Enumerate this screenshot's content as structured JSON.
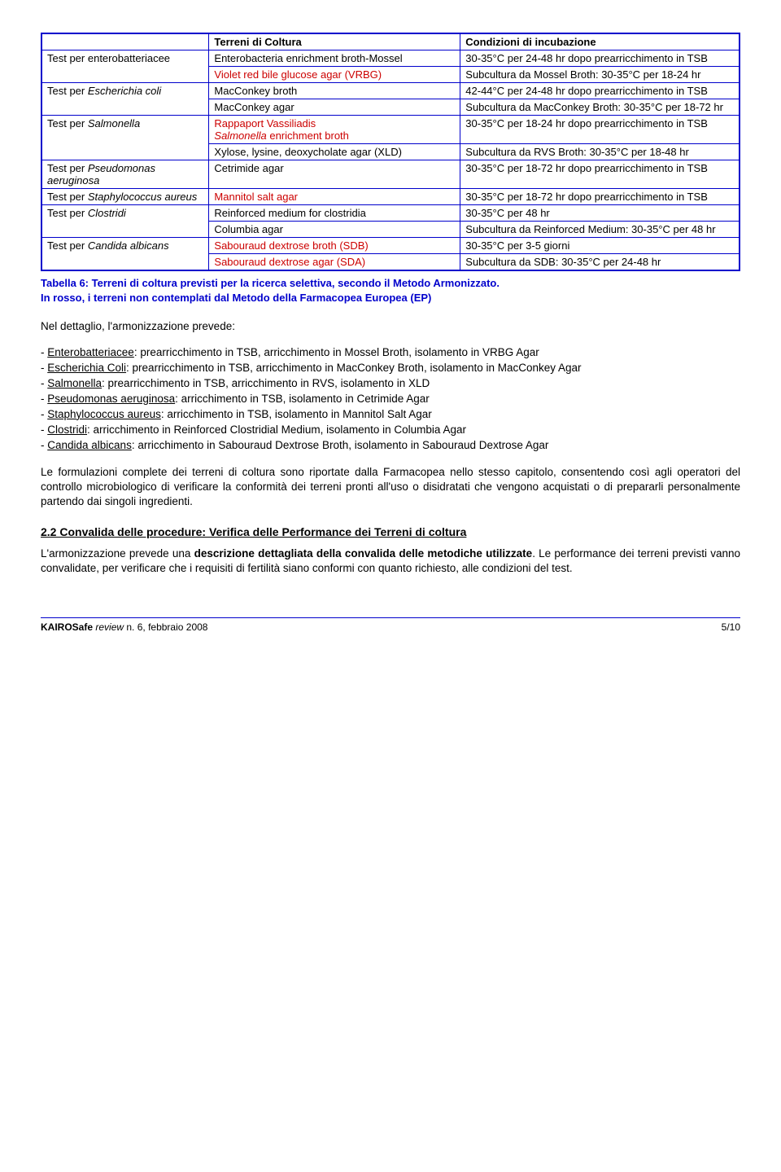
{
  "table": {
    "headers": [
      "",
      "Terreni di Coltura",
      "Condizioni di incubazione"
    ],
    "rows": [
      {
        "c0": "Test per enterobatteriacee",
        "c0_it": false,
        "c0_rowspan": 2,
        "c1": "Enterobacteria enrichment broth-Mossel",
        "c1_red": false,
        "c2": "30-35°C per 24-48 hr dopo prearricchimento in TSB"
      },
      {
        "c1": "Violet red bile glucose agar (VRBG)",
        "c1_red": true,
        "c2": "Subcultura da Mossel Broth: 30-35°C per 18-24 hr"
      },
      {
        "c0": "Test per ",
        "c0_it_tail": "Escherichia coli",
        "c0_rowspan": 2,
        "c1": "MacConkey broth",
        "c1_red": false,
        "c2": "42-44°C per 24-48 hr dopo prearricchimento in TSB"
      },
      {
        "c1": "MacConkey agar",
        "c1_red": false,
        "c2": "Subcultura da MacConkey Broth: 30-35°C per 18-72 hr"
      },
      {
        "c0": "Test per ",
        "c0_it_tail": "Salmonella",
        "c0_rowspan": 2,
        "c1_a": "Rappaport Vassiliadis",
        "c1_b": "Salmonella",
        "c1_c": " enrichment broth",
        "c1_red": true,
        "c2": "30-35°C per 18-24 hr dopo prearricchimento in TSB"
      },
      {
        "c1": "Xylose, lysine, deoxycholate agar (XLD)",
        "c1_red": false,
        "c2": "Subcultura da RVS Broth: 30-35°C per 18-48 hr"
      },
      {
        "c0": "Test per ",
        "c0_it_tail": "Pseudomonas aeruginosa",
        "c0_rowspan": 1,
        "c1": "Cetrimide agar",
        "c1_red": false,
        "c2": "30-35°C per 18-72 hr dopo prearricchimento in TSB"
      },
      {
        "c0": "Test per ",
        "c0_it_tail": "Staphylococcus aureus",
        "c0_rowspan": 1,
        "c1": "Mannitol salt agar",
        "c1_red": true,
        "c2": "30-35°C per 18-72 hr dopo prearricchimento in TSB"
      },
      {
        "c0": "Test per ",
        "c0_it_tail": "Clostridi",
        "c0_rowspan": 2,
        "c1": "Reinforced medium for clostridia",
        "c1_red": false,
        "c2": "30-35°C per 48 hr"
      },
      {
        "c1": "Columbia agar",
        "c1_red": false,
        "c2": "Subcultura da Reinforced Medium: 30-35°C per 48 hr"
      },
      {
        "c0": "Test per ",
        "c0_it_tail": "Candida albicans",
        "c0_rowspan": 2,
        "c1": "Sabouraud dextrose broth (SDB)",
        "c1_red": true,
        "c2": "30-35°C per 3-5 giorni"
      },
      {
        "c1": "Sabouraud dextrose agar (SDA)",
        "c1_red": true,
        "c2": "Subcultura da SDB: 30-35°C per 24-48 hr"
      }
    ]
  },
  "caption": {
    "line1": "Tabella 6: Terreni di coltura previsti per la ricerca selettiva, secondo il Metodo Armonizzato.",
    "line2": "In rosso, i terreni non contemplati dal Metodo della Farmacopea Europea (EP)"
  },
  "intro": "Nel dettaglio, l'armonizzazione prevede:",
  "bullets": [
    {
      "u": "Enterobatteriacee",
      "t": ": prearricchimento in TSB, arricchimento in Mossel Broth, isolamento in VRBG Agar"
    },
    {
      "u": "Escherichia Coli",
      "t": ": prearricchimento in TSB, arricchimento in MacConkey Broth, isolamento in MacConkey Agar"
    },
    {
      "u": "Salmonella",
      "t": ": prearricchimento in TSB, arricchimento in RVS, isolamento in XLD"
    },
    {
      "u": "Pseudomonas aeruginosa",
      "t": ": arricchimento in TSB, isolamento in Cetrimide Agar"
    },
    {
      "u": "Staphylococcus aureus",
      "t": ": arricchimento in TSB, isolamento in Mannitol Salt Agar"
    },
    {
      "u": "Clostridi",
      "t": ": arricchimento in Reinforced Clostridial Medium, isolamento in Columbia Agar"
    },
    {
      "u": "Candida albicans",
      "t": ": arricchimento in Sabouraud Dextrose Broth, isolamento in Sabouraud Dextrose Agar"
    }
  ],
  "para1": "Le formulazioni complete dei terreni di coltura sono riportate dalla Farmacopea nello stesso capitolo, consentendo così agli operatori del controllo microbiologico di verificare la conformità dei terreni pronti all'uso o disidratati che vengono acquistati o di prepararli personalmente partendo dai singoli ingredienti.",
  "section": "2.2 Convalida delle procedure: Verifica delle Performance dei Terreni di coltura",
  "para2_a": "L'armonizzazione prevede una ",
  "para2_b": "descrizione dettagliata della convalida delle metodiche utilizzate",
  "para2_c": ". Le performance dei terreni previsti vanno convalidate, per verificare che i requisiti di fertilità siano conformi con quanto richiesto, alle condizioni del test.",
  "footer": {
    "left_a": "KAIROSafe ",
    "left_b": "review",
    "left_c": " n. 6, febbraio 2008",
    "right": "5/10"
  }
}
